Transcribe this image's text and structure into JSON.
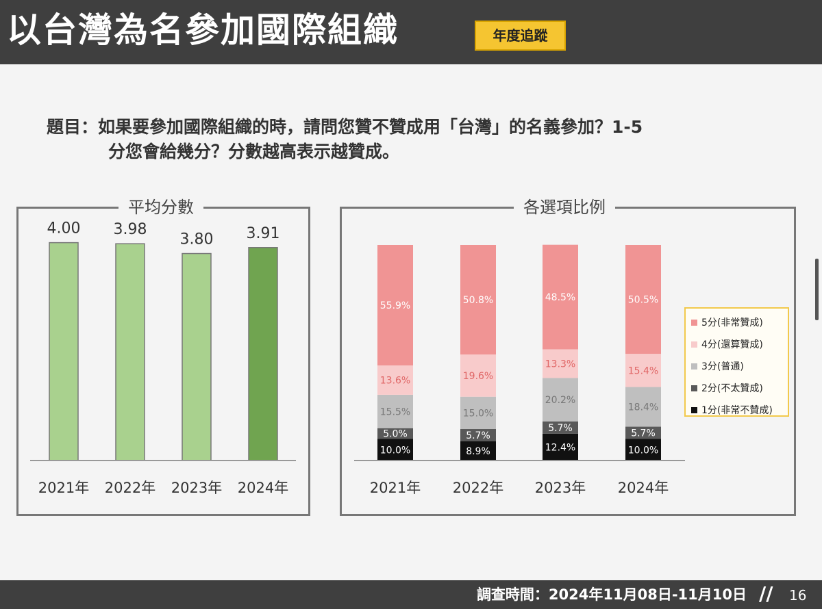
{
  "header": {
    "title": "以台灣為名參加國際組織",
    "badge": "年度追蹤"
  },
  "question": {
    "line1": "題目：如果要參加國際組織的時，請問您贊不贊成用「台灣」的名義參加？1-5",
    "line2": "分您會給幾分？分數越高表示越贊成。"
  },
  "panels": {
    "left_title": "平均分數",
    "right_title": "各選項比例"
  },
  "chart_data": [
    {
      "type": "bar",
      "title": "平均分數",
      "categories": [
        "2021年",
        "2022年",
        "2023年",
        "2024年"
      ],
      "values": [
        4.0,
        3.98,
        3.8,
        3.91
      ],
      "value_labels": [
        "4.00",
        "3.98",
        "3.80",
        "3.91"
      ],
      "ylim": [
        0,
        5
      ],
      "grid": false,
      "colors": [
        "#a9d18e",
        "#a9d18e",
        "#a9d18e",
        "#70a450"
      ]
    },
    {
      "type": "bar",
      "stacked": true,
      "title": "各選項比例",
      "categories": [
        "2021年",
        "2022年",
        "2023年",
        "2024年"
      ],
      "ylim": [
        0,
        100
      ],
      "legend_position": "right",
      "series": [
        {
          "name": "1分(非常不贊成)",
          "color": "#111111",
          "label_color": "#ffffff",
          "values": [
            10.0,
            8.9,
            12.4,
            10.0
          ],
          "labels": [
            "10.0%",
            "8.9%",
            "12.4%",
            "10.0%"
          ]
        },
        {
          "name": "2分(不太贊成)",
          "color": "#595959",
          "label_color": "#ffffff",
          "values": [
            5.0,
            5.7,
            5.7,
            5.7
          ],
          "labels": [
            "5.0%",
            "5.7%",
            "5.7%",
            "5.7%"
          ]
        },
        {
          "name": "3分(普通)",
          "color": "#bfbfbf",
          "label_color": "#777777",
          "values": [
            15.5,
            15.0,
            20.2,
            18.4
          ],
          "labels": [
            "15.5%",
            "15.0%",
            "20.2%",
            "18.4%"
          ]
        },
        {
          "name": "4分(還算贊成)",
          "color": "#f8cbcb",
          "label_color": "#e06666",
          "values": [
            13.6,
            19.6,
            13.3,
            15.4
          ],
          "labels": [
            "13.6%",
            "19.6%",
            "13.3%",
            "15.4%"
          ]
        },
        {
          "name": "5分(非常贊成)",
          "color": "#f09494",
          "label_color": "#ffffff",
          "values": [
            55.9,
            50.8,
            48.5,
            50.5
          ],
          "labels": [
            "55.9%",
            "50.8%",
            "48.5%",
            "50.5%"
          ]
        }
      ]
    }
  ],
  "footer": {
    "survey_period": "調查時間：2024年11月08日-11月10日",
    "slash": "//",
    "page_number": "16"
  }
}
